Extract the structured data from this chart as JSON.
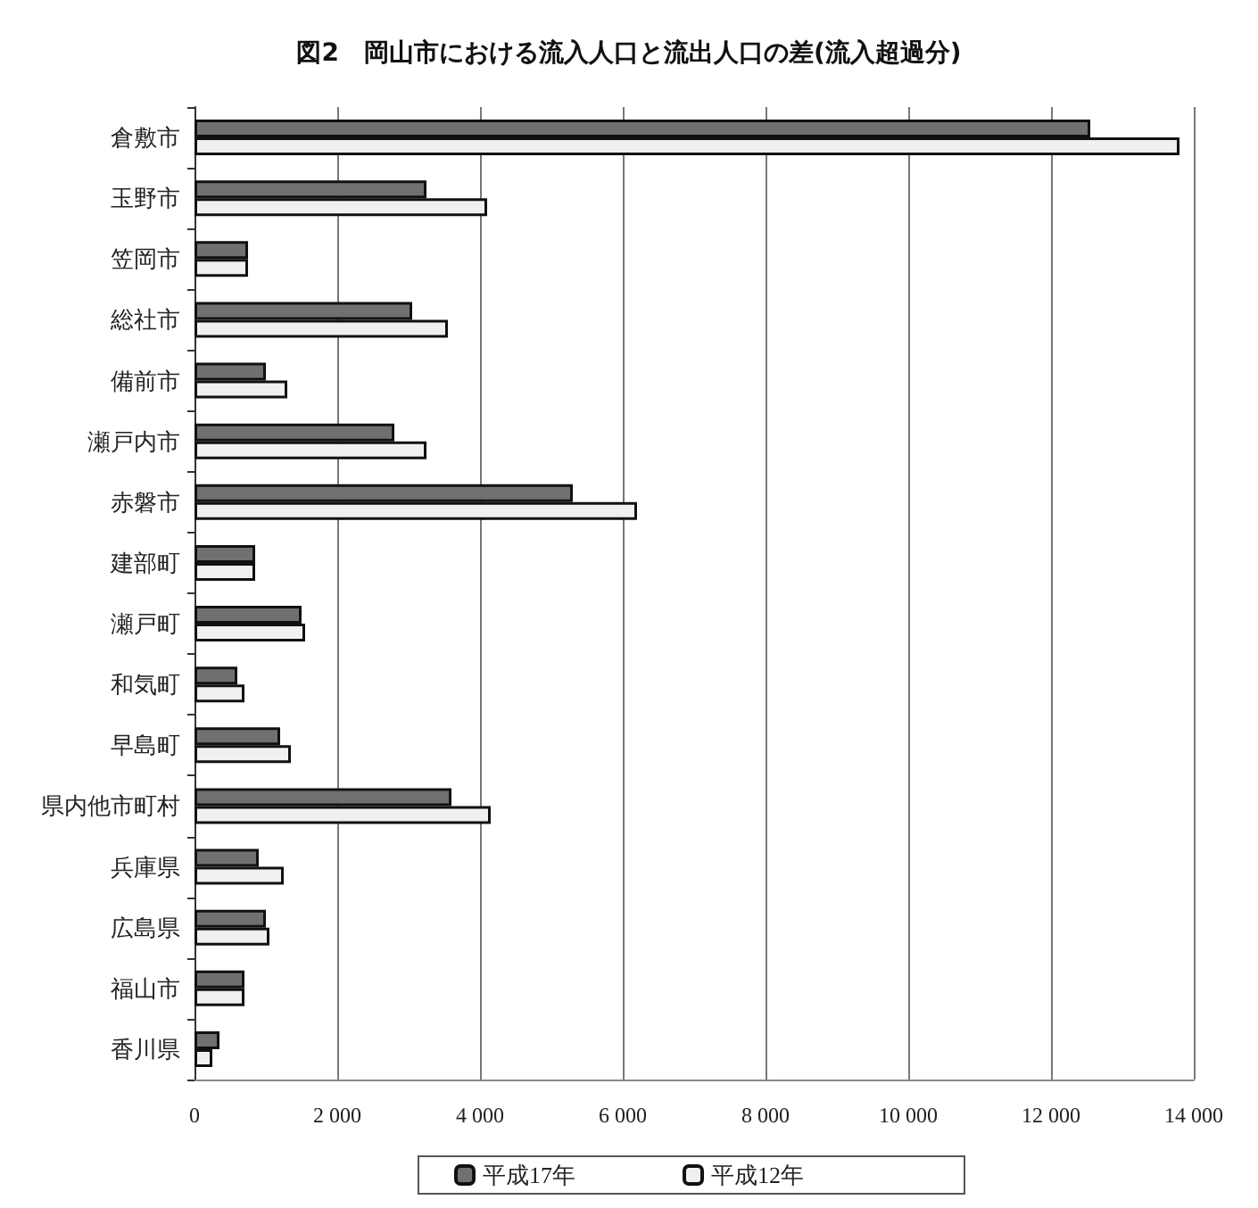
{
  "chart_data": {
    "type": "bar",
    "orientation": "horizontal",
    "title": "図2　岡山市における流入人口と流出人口の差(流入超過分)",
    "categories": [
      "倉敷市",
      "玉野市",
      "笠岡市",
      "総社市",
      "備前市",
      "瀬戸内市",
      "赤磐市",
      "建部町",
      "瀬戸町",
      "和気町",
      "早島町",
      "県内他市町村",
      "兵庫県",
      "広島県",
      "福山市",
      "香川県"
    ],
    "series": [
      {
        "name": "平成17年",
        "color": "#707070",
        "values": [
          12550,
          3250,
          750,
          3050,
          1000,
          2800,
          5300,
          850,
          1500,
          600,
          1200,
          3600,
          900,
          1000,
          700,
          350
        ]
      },
      {
        "name": "平成12年",
        "color": "#f0f0f0",
        "values": [
          13800,
          4100,
          750,
          3550,
          1300,
          3250,
          6200,
          850,
          1550,
          700,
          1350,
          4150,
          1250,
          1050,
          700,
          250
        ]
      }
    ],
    "xlim": [
      0,
      14000
    ],
    "xticks": [
      0,
      {
        "value": 2000,
        "label": "2 000"
      },
      {
        "value": 4000,
        "label": "4 000"
      },
      {
        "value": 6000,
        "label": "6 000"
      },
      {
        "value": 8000,
        "label": "8 000"
      },
      {
        "value": 10000,
        "label": "10 000"
      },
      {
        "value": 12000,
        "label": "12 000"
      },
      {
        "value": 14000,
        "label": "14 000"
      }
    ],
    "grid": "x",
    "legend": "bottom"
  }
}
